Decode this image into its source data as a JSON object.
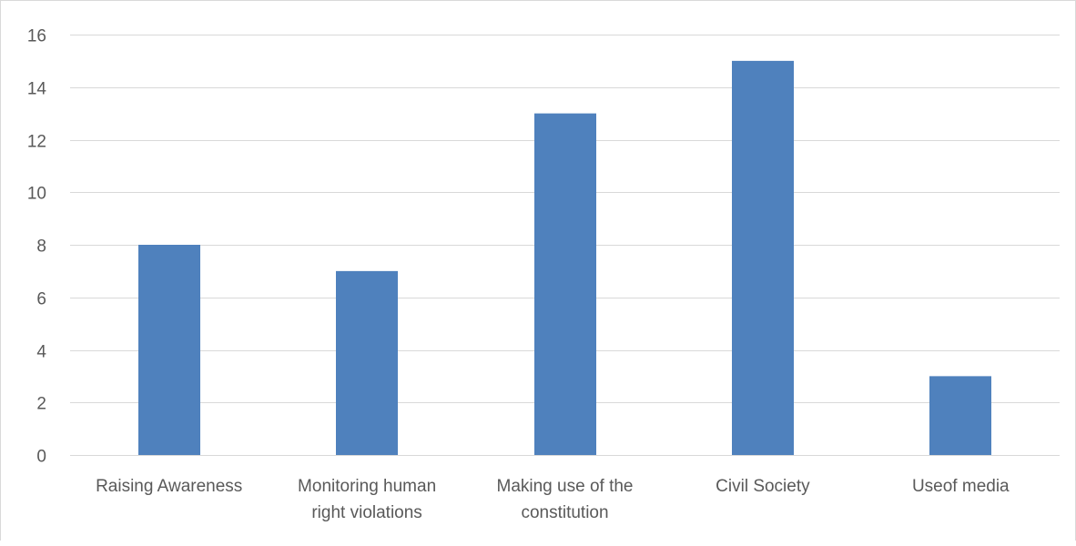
{
  "chart_data": {
    "type": "bar",
    "title": "",
    "xlabel": "",
    "ylabel": "",
    "categories": [
      [
        "Raising Awareness"
      ],
      [
        "Monitoring human",
        "right violations"
      ],
      [
        "Making use of the",
        "constitution"
      ],
      [
        "Civil Society"
      ],
      [
        "Useof media"
      ]
    ],
    "values": [
      8,
      7,
      13,
      15,
      3
    ],
    "ylim": [
      0,
      16
    ],
    "yticks": [
      0,
      2,
      4,
      6,
      8,
      10,
      12,
      14,
      16
    ],
    "grid": true,
    "legend": "none",
    "colors": {
      "bar": "#4f81bd",
      "grid": "#d9d9d9",
      "axis": "#d9d9d9",
      "text": "#595959"
    }
  }
}
